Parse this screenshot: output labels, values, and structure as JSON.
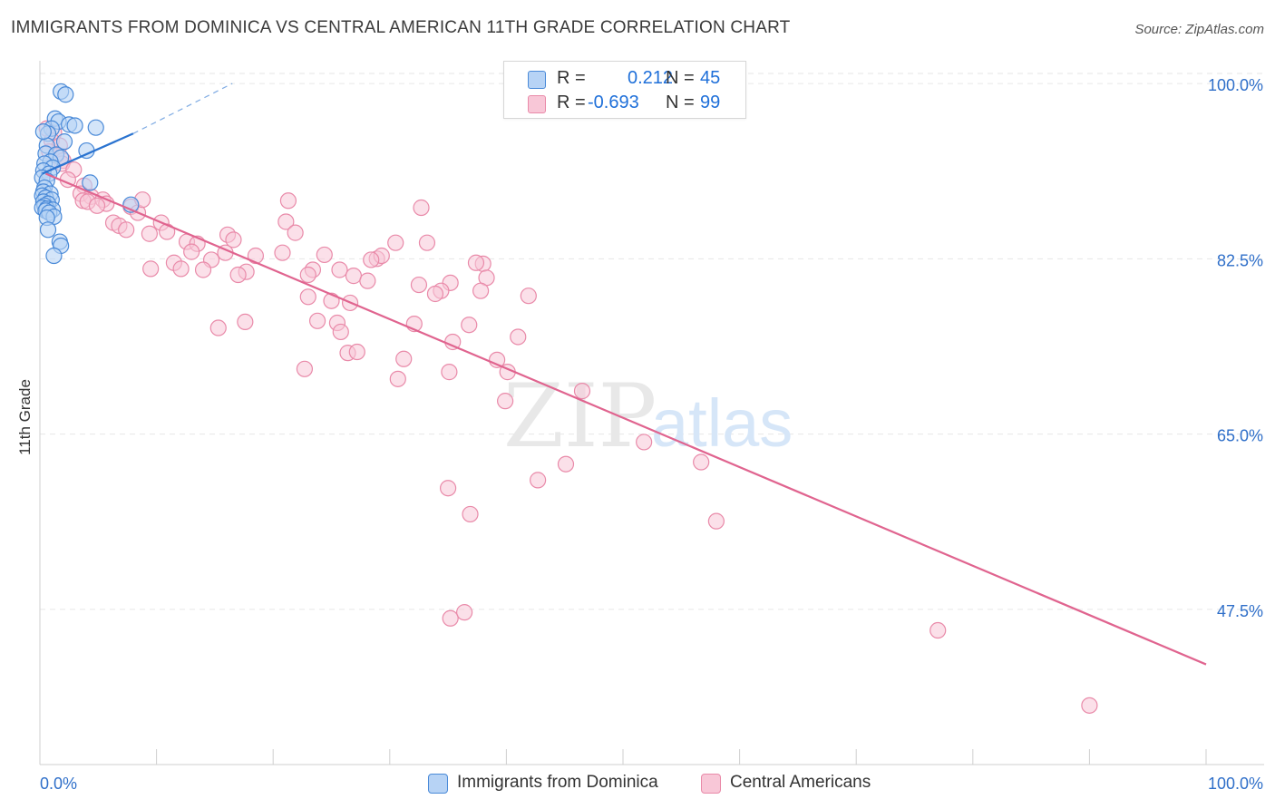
{
  "title": "IMMIGRANTS FROM DOMINICA VS CENTRAL AMERICAN 11TH GRADE CORRELATION CHART",
  "source": "Source: ZipAtlas.com",
  "watermark": {
    "zip": "ZIP",
    "atlas": "atlas"
  },
  "colors": {
    "blue_fill": "#b7d3f5",
    "blue_stroke": "#4a8ad8",
    "blue_line": "#2a73d0",
    "pink_fill": "#f8c7d7",
    "pink_stroke": "#e98aa9",
    "pink_line": "#e0648f",
    "axis_text": "#2f6fc9",
    "grid": "#e6e6e6"
  },
  "stats": {
    "r_label": "R =",
    "n_label": "N =",
    "rows": [
      {
        "r": "0.212",
        "n": "45"
      },
      {
        "r": "-0.693",
        "n": "99"
      }
    ]
  },
  "legend": {
    "items": [
      "Immigrants from Dominica",
      "Central Americans"
    ]
  },
  "chart_data": {
    "type": "scatter",
    "title": "IMMIGRANTS FROM DOMINICA VS CENTRAL AMERICAN 11TH GRADE CORRELATION CHART",
    "xlabel": "",
    "ylabel": "11th Grade",
    "xlim": [
      0,
      100
    ],
    "ylim": [
      32,
      102
    ],
    "x_tick_labels": [
      "0.0%",
      "100.0%"
    ],
    "y_ticks": [
      47.5,
      65.0,
      82.5,
      100.0
    ],
    "y_tick_labels": [
      "47.5%",
      "65.0%",
      "82.5%",
      "100.0%"
    ],
    "grid": true,
    "legend_position": "bottom-center",
    "series": [
      {
        "name": "Immigrants from Dominica",
        "color": "blue",
        "trend": {
          "x": [
            0.2,
            8.0
          ],
          "y": [
            91.0,
            95.0
          ],
          "dashed_to": [
            16.5,
            100.0
          ]
        },
        "points": [
          [
            1.8,
            99.2
          ],
          [
            2.2,
            98.9
          ],
          [
            1.3,
            96.5
          ],
          [
            1.6,
            96.2
          ],
          [
            2.5,
            95.9
          ],
          [
            3.0,
            95.8
          ],
          [
            4.8,
            95.6
          ],
          [
            1.0,
            95.5
          ],
          [
            0.7,
            95.0
          ],
          [
            2.1,
            94.2
          ],
          [
            0.6,
            93.8
          ],
          [
            4.0,
            93.3
          ],
          [
            0.5,
            93.0
          ],
          [
            1.4,
            92.9
          ],
          [
            1.8,
            92.6
          ],
          [
            0.9,
            92.2
          ],
          [
            0.4,
            92.0
          ],
          [
            1.1,
            91.6
          ],
          [
            0.3,
            91.3
          ],
          [
            0.8,
            91.0
          ],
          [
            0.2,
            90.6
          ],
          [
            0.6,
            90.3
          ],
          [
            4.3,
            90.1
          ],
          [
            0.4,
            89.6
          ],
          [
            0.3,
            89.2
          ],
          [
            0.9,
            89.0
          ],
          [
            0.2,
            88.8
          ],
          [
            0.5,
            88.6
          ],
          [
            1.0,
            88.4
          ],
          [
            0.3,
            88.2
          ],
          [
            0.7,
            88.0
          ],
          [
            0.4,
            87.8
          ],
          [
            7.8,
            87.9
          ],
          [
            0.2,
            87.6
          ],
          [
            0.6,
            87.5
          ],
          [
            1.1,
            87.4
          ],
          [
            0.5,
            87.3
          ],
          [
            0.8,
            87.1
          ],
          [
            1.2,
            86.7
          ],
          [
            0.6,
            86.6
          ],
          [
            0.7,
            85.4
          ],
          [
            1.7,
            84.2
          ],
          [
            1.8,
            83.8
          ],
          [
            1.2,
            82.8
          ],
          [
            0.3,
            95.2
          ]
        ]
      },
      {
        "name": "Central Americans",
        "color": "pink",
        "trend": {
          "x": [
            0.5,
            100.0
          ],
          "y": [
            91.0,
            42.0
          ]
        },
        "points": [
          [
            0.6,
            95.5
          ],
          [
            1.2,
            95.1
          ],
          [
            1.0,
            94.3
          ],
          [
            1.7,
            93.8
          ],
          [
            0.8,
            93.2
          ],
          [
            1.4,
            92.8
          ],
          [
            2.0,
            92.3
          ],
          [
            1.9,
            92.0
          ],
          [
            2.9,
            91.4
          ],
          [
            2.4,
            90.4
          ],
          [
            3.8,
            89.8
          ],
          [
            3.5,
            89.0
          ],
          [
            4.4,
            88.7
          ],
          [
            3.7,
            88.3
          ],
          [
            4.1,
            88.2
          ],
          [
            5.4,
            88.4
          ],
          [
            5.7,
            88.0
          ],
          [
            4.9,
            87.8
          ],
          [
            7.8,
            87.7
          ],
          [
            8.4,
            87.1
          ],
          [
            8.8,
            88.4
          ],
          [
            6.3,
            86.1
          ],
          [
            6.8,
            85.8
          ],
          [
            7.4,
            85.4
          ],
          [
            10.4,
            86.1
          ],
          [
            10.9,
            85.2
          ],
          [
            9.4,
            85.0
          ],
          [
            21.3,
            88.3
          ],
          [
            32.7,
            87.6
          ],
          [
            16.1,
            84.9
          ],
          [
            16.6,
            84.4
          ],
          [
            21.1,
            86.2
          ],
          [
            21.9,
            85.1
          ],
          [
            12.6,
            84.2
          ],
          [
            13.5,
            84.0
          ],
          [
            15.9,
            83.1
          ],
          [
            13.0,
            83.2
          ],
          [
            18.5,
            82.8
          ],
          [
            20.8,
            83.1
          ],
          [
            24.4,
            82.9
          ],
          [
            30.5,
            84.1
          ],
          [
            33.2,
            84.1
          ],
          [
            28.9,
            82.5
          ],
          [
            29.3,
            82.8
          ],
          [
            28.4,
            82.4
          ],
          [
            38.0,
            82.0
          ],
          [
            37.4,
            82.1
          ],
          [
            11.5,
            82.1
          ],
          [
            14.7,
            82.4
          ],
          [
            9.5,
            81.5
          ],
          [
            12.1,
            81.5
          ],
          [
            14.0,
            81.4
          ],
          [
            23.4,
            81.4
          ],
          [
            25.7,
            81.4
          ],
          [
            17.7,
            81.2
          ],
          [
            17.0,
            80.9
          ],
          [
            23.0,
            80.9
          ],
          [
            26.9,
            80.8
          ],
          [
            35.2,
            80.1
          ],
          [
            32.5,
            79.9
          ],
          [
            38.3,
            80.6
          ],
          [
            28.1,
            80.3
          ],
          [
            34.4,
            79.3
          ],
          [
            37.8,
            79.3
          ],
          [
            23.0,
            78.7
          ],
          [
            33.9,
            79.0
          ],
          [
            25.0,
            78.3
          ],
          [
            26.6,
            78.1
          ],
          [
            41.9,
            78.8
          ],
          [
            17.6,
            76.2
          ],
          [
            23.8,
            76.3
          ],
          [
            25.5,
            76.1
          ],
          [
            32.1,
            76.0
          ],
          [
            36.8,
            75.9
          ],
          [
            15.3,
            75.6
          ],
          [
            25.8,
            75.2
          ],
          [
            41.0,
            74.7
          ],
          [
            35.4,
            74.2
          ],
          [
            26.4,
            73.1
          ],
          [
            27.2,
            73.2
          ],
          [
            31.2,
            72.5
          ],
          [
            39.2,
            72.4
          ],
          [
            22.7,
            71.5
          ],
          [
            35.1,
            71.2
          ],
          [
            40.1,
            71.2
          ],
          [
            30.7,
            70.5
          ],
          [
            46.5,
            69.3
          ],
          [
            39.9,
            68.3
          ],
          [
            51.8,
            64.2
          ],
          [
            45.1,
            62.0
          ],
          [
            42.7,
            60.4
          ],
          [
            35.0,
            59.6
          ],
          [
            36.9,
            57.0
          ],
          [
            56.7,
            62.2
          ],
          [
            58.0,
            56.3
          ],
          [
            36.4,
            47.2
          ],
          [
            35.2,
            46.6
          ],
          [
            77.0,
            45.4
          ],
          [
            90.0,
            37.9
          ]
        ]
      }
    ]
  }
}
